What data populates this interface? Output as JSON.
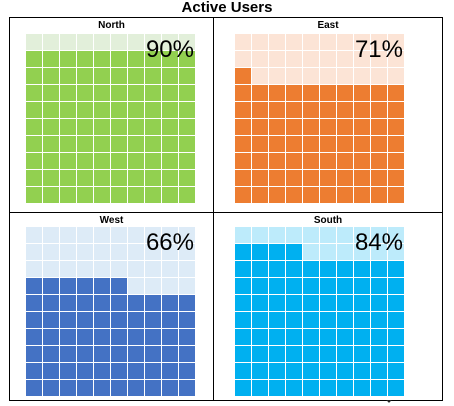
{
  "chart_data": {
    "type": "waffle",
    "title": "Active Users",
    "grid": {
      "rows": 10,
      "cols": 10
    },
    "panels": [
      {
        "name": "North",
        "value": 90,
        "label": "90%",
        "color": "#92D050",
        "empty_color": "#E2EFDA"
      },
      {
        "name": "East",
        "value": 71,
        "label": "71%",
        "color": "#ED7D31",
        "empty_color": "#FCE4D6"
      },
      {
        "name": "West",
        "value": 66,
        "label": "66%",
        "color": "#4472C4",
        "empty_color": "#DDEBF7"
      },
      {
        "name": "South",
        "value": 84,
        "label": "84%",
        "color": "#00B0F0",
        "empty_color": "#BDEBFB"
      }
    ]
  }
}
